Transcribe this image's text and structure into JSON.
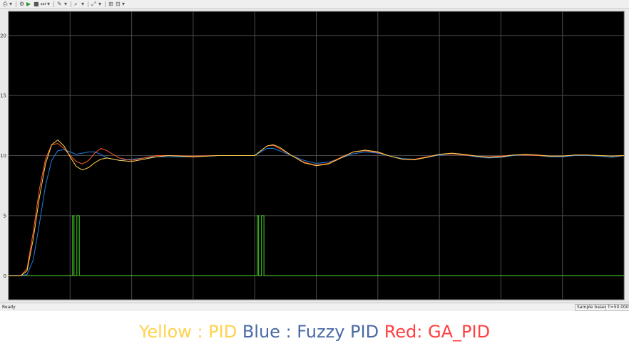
{
  "toolbar": {
    "icons": [
      "print-icon",
      "settings-icon",
      "run-icon",
      "stop-icon",
      "step-icon",
      "highlight-icon",
      "zoom-icon",
      "autoscale-icon",
      "cursor-icon",
      "triggers-icon"
    ]
  },
  "status": {
    "left": "Ready",
    "mode": "Sample based",
    "time": "T=50.000"
  },
  "caption": {
    "yellow_key": "Yellow : ",
    "yellow_val": "PID",
    "blue_key": " Blue : ",
    "blue_val": "Fuzzy PID",
    "red_key": " Red: ",
    "red_val": "GA_PID"
  },
  "colors": {
    "background": "#000000",
    "grid": "#4a4a4a",
    "yellow": "#ffd24d",
    "blue": "#1e7fe6",
    "red": "#ff5a2a",
    "green": "#46d020",
    "caption_yellow": "#ffd24d",
    "caption_blue": "#4a6aa5",
    "caption_red": "#ff4040"
  },
  "chart_data": {
    "type": "line",
    "title": "",
    "xlabel": "",
    "ylabel": "",
    "xlim": [
      0,
      50
    ],
    "ylim": [
      -2,
      22
    ],
    "xticks": [
      0,
      5,
      10,
      15,
      20,
      25,
      30,
      35,
      40,
      45,
      50
    ],
    "yticks": [
      0,
      5,
      10,
      15,
      20
    ],
    "grid": true,
    "series": [
      {
        "color": "#ffd24d",
        "x": [
          0,
          1,
          1.5,
          2,
          2.5,
          3,
          3.5,
          4,
          4.5,
          5,
          5.5,
          6,
          6.5,
          7,
          7.5,
          8,
          9,
          10,
          11,
          12,
          13,
          15,
          17,
          20,
          20.5,
          21,
          21.5,
          22,
          23,
          24,
          25,
          26,
          27,
          28,
          29,
          30,
          31,
          32,
          33,
          34,
          35,
          36,
          37,
          38,
          39,
          40,
          41,
          42,
          43,
          44,
          45,
          46,
          47,
          48,
          49,
          50
        ],
        "y": [
          0,
          0,
          0.4,
          3.0,
          6.5,
          9.3,
          10.9,
          11.3,
          10.8,
          9.9,
          9.1,
          8.8,
          9.0,
          9.4,
          9.7,
          9.8,
          9.6,
          9.5,
          9.7,
          9.9,
          10.0,
          9.9,
          10.0,
          10.0,
          10.4,
          10.8,
          10.9,
          10.7,
          10.0,
          9.4,
          9.15,
          9.3,
          9.8,
          10.3,
          10.45,
          10.3,
          9.95,
          9.7,
          9.65,
          9.85,
          10.1,
          10.2,
          10.1,
          9.95,
          9.85,
          9.9,
          10.05,
          10.1,
          10.05,
          9.95,
          9.95,
          10.05,
          10.05,
          10.0,
          9.95,
          10.0
        ]
      },
      {
        "color": "#1e7fe6",
        "x": [
          0,
          1,
          1.5,
          2,
          2.5,
          3,
          3.5,
          4,
          4.5,
          5,
          5.5,
          6,
          6.5,
          7,
          7.5,
          8,
          9,
          10,
          11,
          12,
          13,
          15,
          17,
          20,
          20.5,
          21,
          21.5,
          22,
          23,
          24,
          25,
          26,
          27,
          28,
          29,
          30,
          31,
          32,
          33,
          34,
          35,
          36,
          37,
          38,
          39,
          40,
          41,
          42,
          43,
          44,
          45,
          46,
          47,
          48,
          49,
          50
        ],
        "y": [
          0,
          0,
          0.1,
          1.3,
          4.3,
          7.5,
          9.6,
          10.4,
          10.5,
          10.3,
          10.1,
          10.2,
          10.3,
          10.3,
          10.1,
          9.8,
          9.6,
          9.7,
          9.8,
          9.9,
          9.9,
          9.9,
          10.0,
          10.0,
          10.3,
          10.6,
          10.6,
          10.4,
          10.0,
          9.6,
          9.35,
          9.45,
          9.8,
          10.15,
          10.3,
          10.2,
          9.95,
          9.75,
          9.7,
          9.85,
          10.05,
          10.15,
          10.05,
          9.9,
          9.8,
          9.85,
          10.0,
          10.05,
          10.0,
          9.9,
          9.9,
          10.0,
          10.0,
          9.95,
          9.85,
          10.0
        ]
      },
      {
        "color": "#ff5a2a",
        "x": [
          0,
          1,
          1.5,
          2,
          2.5,
          3,
          3.5,
          4,
          4.5,
          5,
          5.5,
          6,
          6.5,
          7,
          7.5,
          8,
          9,
          10,
          11,
          12,
          13,
          15,
          17,
          20,
          20.5,
          21,
          21.5,
          22,
          23,
          24,
          25,
          26,
          27,
          28,
          29,
          30,
          31,
          32,
          33,
          34,
          35,
          36,
          37,
          38,
          39,
          40,
          41,
          42,
          43,
          44,
          45,
          46,
          47,
          48,
          49,
          50
        ],
        "y": [
          0,
          0,
          0.6,
          3.6,
          7.2,
          9.7,
          10.9,
          11.0,
          10.6,
          10.0,
          9.5,
          9.3,
          9.6,
          10.2,
          10.6,
          10.4,
          9.8,
          9.6,
          9.8,
          10.0,
          10.0,
          9.95,
          10.0,
          10.0,
          10.4,
          10.8,
          10.85,
          10.6,
          10.0,
          9.45,
          9.2,
          9.35,
          9.85,
          10.3,
          10.4,
          10.25,
          9.95,
          9.7,
          9.7,
          9.9,
          10.1,
          10.15,
          10.05,
          9.95,
          9.9,
          9.95,
          10.05,
          10.05,
          10.0,
          9.95,
          9.95,
          10.05,
          10.05,
          10.0,
          9.95,
          10.0
        ]
      },
      {
        "color": "#46d020",
        "x": [
          0,
          5.2,
          5.2,
          5.32,
          5.32,
          5.55,
          5.55,
          5.75,
          5.75,
          5.82,
          5.82,
          20.2,
          20.2,
          20.32,
          20.32,
          20.55,
          20.55,
          20.75,
          20.75,
          20.82,
          20.82,
          50
        ],
        "y": [
          0,
          0,
          5,
          5,
          0,
          0,
          5,
          5,
          0,
          0,
          0,
          0,
          5,
          5,
          0,
          0,
          5,
          5,
          0,
          0,
          0,
          0
        ]
      }
    ]
  }
}
